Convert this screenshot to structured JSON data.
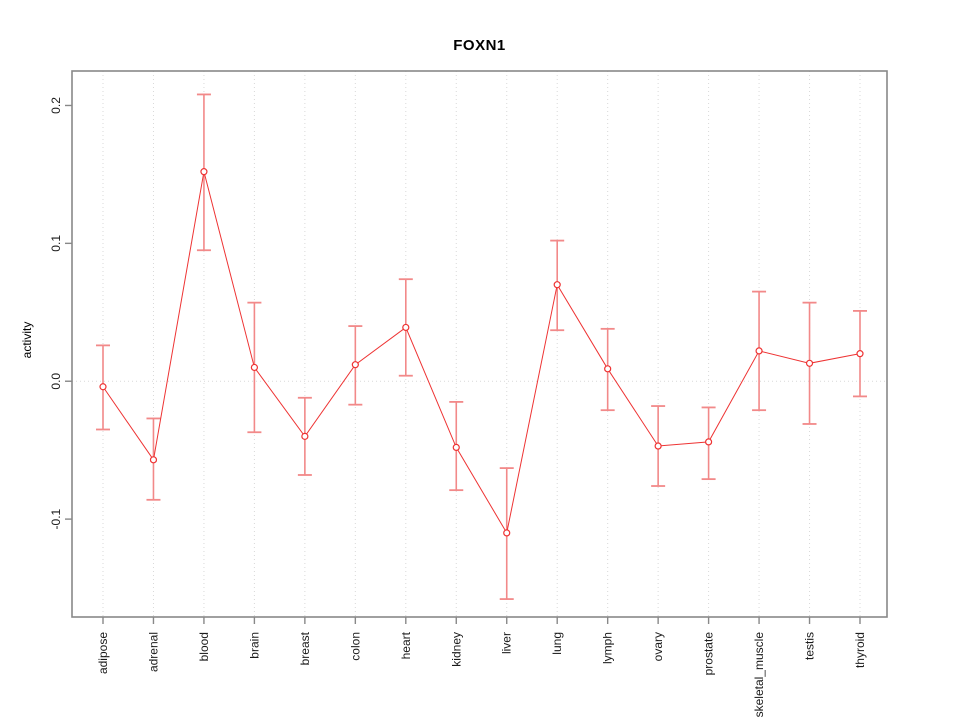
{
  "figure": {
    "title": "FOXN1",
    "ylabel": "activity"
  },
  "chart_data": {
    "type": "line",
    "title": "FOXN1",
    "xlabel": "",
    "ylabel": "activity",
    "categories": [
      "adipose",
      "adrenal",
      "blood",
      "brain",
      "breast",
      "colon",
      "heart",
      "kidney",
      "liver",
      "lung",
      "lymph",
      "ovary",
      "prostate",
      "skeletal_muscle",
      "testis",
      "thyroid"
    ],
    "series": [
      {
        "name": "FOXN1 activity",
        "values": [
          -0.004,
          -0.057,
          0.152,
          0.01,
          -0.04,
          0.012,
          0.039,
          -0.048,
          -0.11,
          0.07,
          0.009,
          -0.047,
          -0.044,
          0.022,
          0.013,
          0.02
        ],
        "lower": [
          -0.035,
          -0.086,
          0.095,
          -0.037,
          -0.068,
          -0.017,
          0.004,
          -0.079,
          -0.158,
          0.037,
          -0.021,
          -0.076,
          -0.071,
          -0.021,
          -0.031,
          -0.011
        ],
        "upper": [
          0.026,
          -0.027,
          0.208,
          0.057,
          -0.012,
          0.04,
          0.074,
          -0.015,
          -0.063,
          0.102,
          0.038,
          -0.018,
          -0.019,
          0.065,
          0.057,
          0.051
        ]
      }
    ],
    "yticks": [
      -0.1,
      0.0,
      0.1,
      0.2
    ],
    "ylim": [
      -0.171,
      0.225
    ],
    "grid": {
      "vertical": "dotted gridline at every category",
      "horizontal": "dotted gridline at y=0 only"
    },
    "legend": "none",
    "marker": "open-circle",
    "error_bars": true,
    "colors": {
      "line": "#ee3333",
      "error_bar": "#f28989",
      "grid": "#d9d9d9",
      "frame": "#888888",
      "text": "#1a1a1a",
      "background": "#ffffff"
    }
  }
}
